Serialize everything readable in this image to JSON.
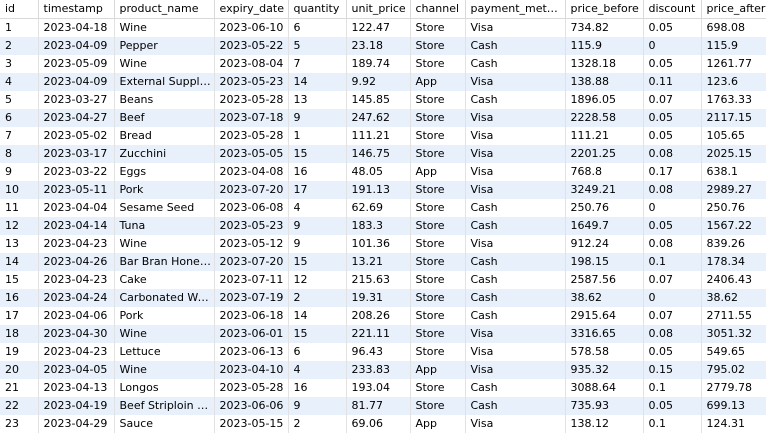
{
  "columns": [
    "id",
    "timestamp",
    "product_name",
    "expiry_date",
    "quantity",
    "unit_price",
    "channel",
    "payment_method",
    "price_before",
    "discount",
    "price_after"
  ],
  "rows": [
    [
      "1",
      "2023-04-18",
      "Wine",
      "2023-06-10",
      "6",
      "122.47",
      "Store",
      "Visa",
      "734.82",
      "0.05",
      "698.08"
    ],
    [
      "2",
      "2023-04-09",
      "Pepper",
      "2023-05-22",
      "5",
      "23.18",
      "Store",
      "Cash",
      "115.9",
      "0",
      "115.9"
    ],
    [
      "3",
      "2023-05-09",
      "Wine",
      "2023-08-04",
      "7",
      "189.74",
      "Store",
      "Cash",
      "1328.18",
      "0.05",
      "1261.77"
    ],
    [
      "4",
      "2023-04-09",
      "External Supplier",
      "2023-05-23",
      "14",
      "9.92",
      "App",
      "Visa",
      "138.88",
      "0.11",
      "123.6"
    ],
    [
      "5",
      "2023-03-27",
      "Beans",
      "2023-05-28",
      "13",
      "145.85",
      "Store",
      "Cash",
      "1896.05",
      "0.07",
      "1763.33"
    ],
    [
      "6",
      "2023-04-27",
      "Beef",
      "2023-07-18",
      "9",
      "247.62",
      "Store",
      "Visa",
      "2228.58",
      "0.05",
      "2117.15"
    ],
    [
      "7",
      "2023-05-02",
      "Bread",
      "2023-05-28",
      "1",
      "111.21",
      "Store",
      "Visa",
      "111.21",
      "0.05",
      "105.65"
    ],
    [
      "8",
      "2023-03-17",
      "Zucchini",
      "2023-05-05",
      "15",
      "146.75",
      "Store",
      "Visa",
      "2201.25",
      "0.08",
      "2025.15"
    ],
    [
      "9",
      "2023-03-22",
      "Eggs",
      "2023-04-08",
      "16",
      "48.05",
      "App",
      "Visa",
      "768.8",
      "0.17",
      "638.1"
    ],
    [
      "10",
      "2023-05-11",
      "Pork",
      "2023-07-20",
      "17",
      "191.13",
      "Store",
      "Visa",
      "3249.21",
      "0.08",
      "2989.27"
    ],
    [
      "11",
      "2023-04-04",
      "Sesame Seed",
      "2023-06-08",
      "4",
      "62.69",
      "Store",
      "Cash",
      "250.76",
      "0",
      "250.76"
    ],
    [
      "12",
      "2023-04-14",
      "Tuna",
      "2023-05-23",
      "9",
      "183.3",
      "Store",
      "Cash",
      "1649.7",
      "0.05",
      "1567.22"
    ],
    [
      "13",
      "2023-04-23",
      "Wine",
      "2023-05-12",
      "9",
      "101.36",
      "Store",
      "Visa",
      "912.24",
      "0.08",
      "839.26"
    ],
    [
      "14",
      "2023-04-26",
      "Bar Bran Honey ...",
      "2023-07-20",
      "15",
      "13.21",
      "Store",
      "Cash",
      "198.15",
      "0.1",
      "178.34"
    ],
    [
      "15",
      "2023-04-23",
      "Cake",
      "2023-07-11",
      "12",
      "215.63",
      "Store",
      "Cash",
      "2587.56",
      "0.07",
      "2406.43"
    ],
    [
      "16",
      "2023-04-24",
      "Carbonated Water",
      "2023-07-19",
      "2",
      "19.31",
      "Store",
      "Cash",
      "38.62",
      "0",
      "38.62"
    ],
    [
      "17",
      "2023-04-06",
      "Pork",
      "2023-06-18",
      "14",
      "208.26",
      "Store",
      "Cash",
      "2915.64",
      "0.07",
      "2711.55"
    ],
    [
      "18",
      "2023-04-30",
      "Wine",
      "2023-06-01",
      "15",
      "221.11",
      "Store",
      "Visa",
      "3316.65",
      "0.08",
      "3051.32"
    ],
    [
      "19",
      "2023-04-23",
      "Lettuce",
      "2023-06-13",
      "6",
      "96.43",
      "Store",
      "Visa",
      "578.58",
      "0.05",
      "549.65"
    ],
    [
      "20",
      "2023-04-05",
      "Wine",
      "2023-04-10",
      "4",
      "233.83",
      "App",
      "Visa",
      "935.32",
      "0.15",
      "795.02"
    ],
    [
      "21",
      "2023-04-13",
      "Longos",
      "2023-05-28",
      "16",
      "193.04",
      "Store",
      "Cash",
      "3088.64",
      "0.1",
      "2779.78"
    ],
    [
      "22",
      "2023-04-19",
      "Beef Striploin Aaa",
      "2023-06-06",
      "9",
      "81.77",
      "Store",
      "Cash",
      "735.93",
      "0.05",
      "699.13"
    ],
    [
      "23",
      "2023-04-29",
      "Sauce",
      "2023-05-15",
      "2",
      "69.06",
      "App",
      "Visa",
      "138.12",
      "0.1",
      "124.31"
    ]
  ]
}
